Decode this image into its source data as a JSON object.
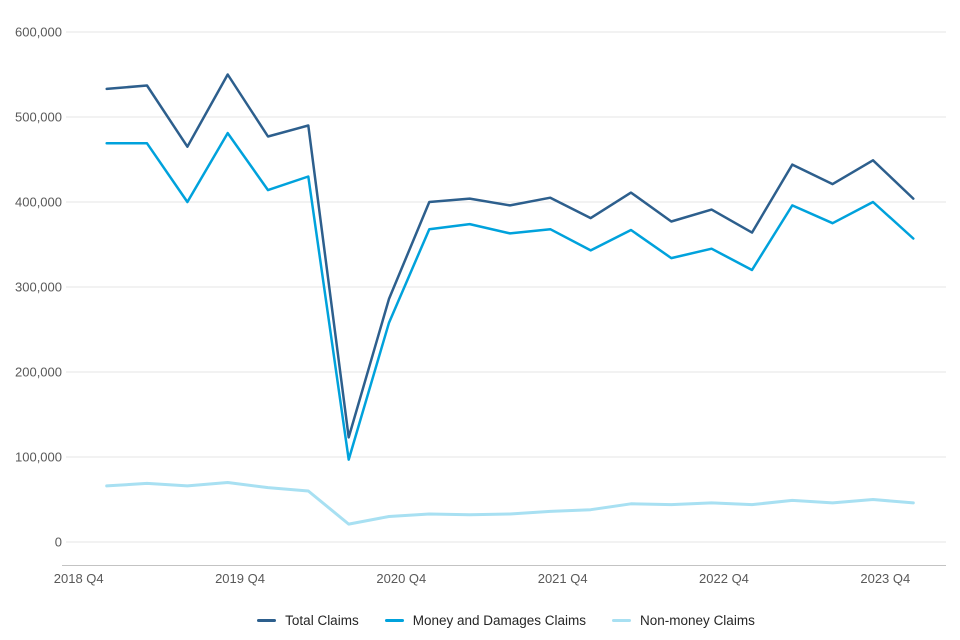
{
  "chart_data": {
    "type": "line",
    "title": "",
    "xlabel": "",
    "ylabel": "",
    "grid": "horizontal",
    "legend_position": "bottom-center",
    "ylim": [
      0,
      600000
    ],
    "ytick_values": [
      0,
      100000,
      200000,
      300000,
      400000,
      500000,
      600000
    ],
    "ytick_labels": [
      "0",
      "100,000",
      "200,000",
      "300,000",
      "400,000",
      "500,000",
      "600,000"
    ],
    "xtick_labels": [
      "2018 Q4",
      "2019 Q4",
      "2020 Q4",
      "2021 Q4",
      "2022 Q4",
      "2023 Q4"
    ],
    "xtick_point_indices": [
      0,
      4,
      8,
      12,
      16,
      20
    ],
    "categories": [
      "2018 Q4",
      "2019 Q1",
      "2019 Q2",
      "2019 Q3",
      "2019 Q4",
      "2020 Q1",
      "2020 Q2",
      "2020 Q3",
      "2020 Q4",
      "2021 Q1",
      "2021 Q2",
      "2021 Q3",
      "2021 Q4",
      "2022 Q1",
      "2022 Q2",
      "2022 Q3",
      "2022 Q4",
      "2023 Q1",
      "2023 Q2",
      "2023 Q3",
      "2023 Q4"
    ],
    "series": [
      {
        "name": "Total Claims",
        "color": "#2d5f8d",
        "values": [
          533000,
          537000,
          465000,
          550000,
          477000,
          490000,
          123000,
          286000,
          400000,
          404000,
          396000,
          405000,
          381000,
          411000,
          377000,
          391000,
          364000,
          444000,
          421000,
          449000,
          404000
        ]
      },
      {
        "name": "Money and Damages Claims",
        "color": "#00a2dc",
        "values": [
          469000,
          469000,
          400000,
          481000,
          414000,
          430000,
          97000,
          258000,
          368000,
          374000,
          363000,
          368000,
          343000,
          367000,
          334000,
          345000,
          320000,
          396000,
          375000,
          400000,
          357000
        ]
      },
      {
        "name": "Non-money Claims",
        "color": "#a8e0f2",
        "values": [
          66000,
          69000,
          66000,
          70000,
          64000,
          60000,
          21000,
          30000,
          33000,
          32000,
          33000,
          36000,
          38000,
          45000,
          44000,
          46000,
          44000,
          49000,
          46000,
          50000,
          46000
        ]
      }
    ]
  },
  "colors": {
    "background": "#ffffff",
    "gridline": "#e6e6e6",
    "axis_line": "#c3c3c3",
    "tick_text": "#595959",
    "legend_text": "#262626"
  }
}
